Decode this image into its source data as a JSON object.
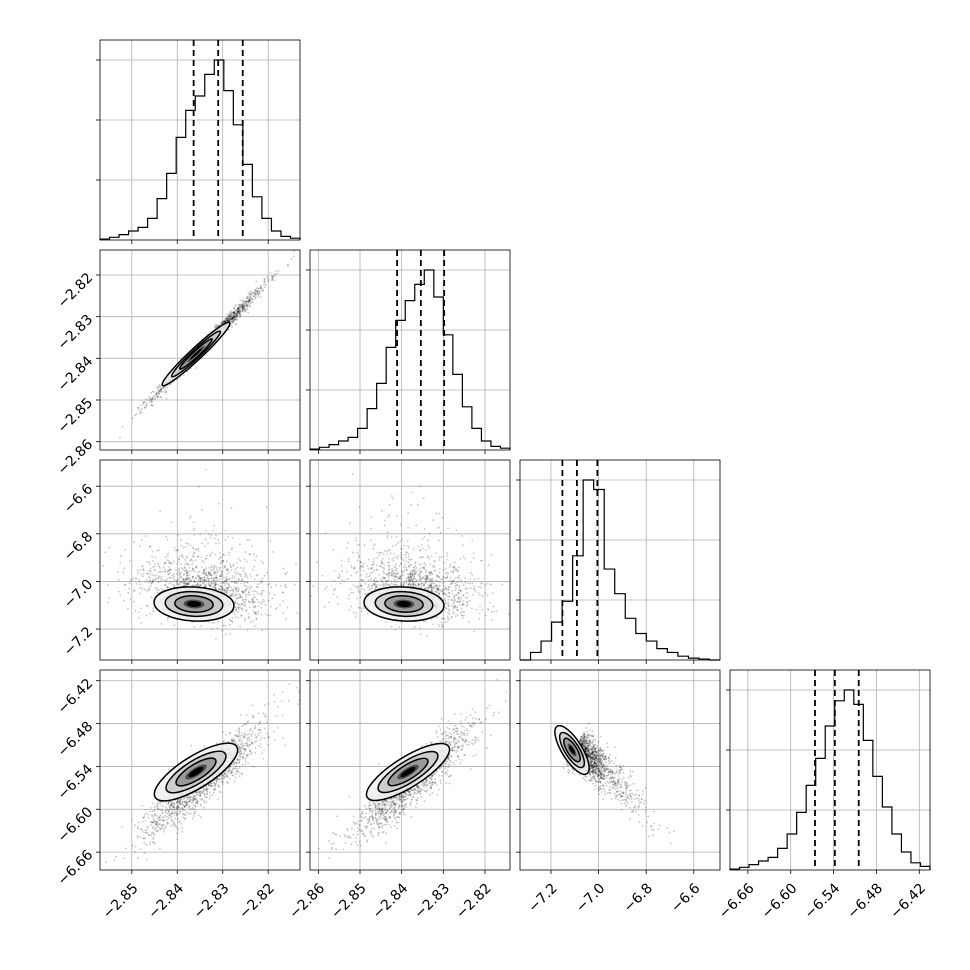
{
  "chart_data": {
    "type": "corner",
    "grid": true,
    "quantiles_marked": "dashed vertical lines on each histogram",
    "parameters": [
      {
        "range": [
          -2.857,
          -2.813
        ],
        "ticks": [
          "-2.85",
          "-2.84",
          "-2.83",
          "-2.82"
        ],
        "tick_values": [
          -2.85,
          -2.84,
          -2.83,
          -2.82
        ],
        "quantile_lines": [
          -2.8364,
          -2.831,
          -2.8256
        ],
        "hist": [
          0.5,
          1.5,
          3,
          5,
          7,
          12,
          23,
          37,
          57,
          72,
          80,
          92,
          100,
          83,
          64,
          42,
          24,
          12,
          5,
          2,
          1
        ]
      },
      {
        "range": [
          -2.862,
          -2.814
        ],
        "ticks": [
          "-2.86",
          "-2.85",
          "-2.84",
          "-2.83",
          "-2.82"
        ],
        "tick_values": [
          -2.86,
          -2.85,
          -2.84,
          -2.83,
          -2.82
        ],
        "quantile_lines": [
          -2.8411,
          -2.8354,
          -2.8298
        ],
        "hist": [
          0.5,
          1.5,
          3,
          5,
          7,
          12,
          23,
          37,
          57,
          72,
          83,
          92,
          100,
          85,
          64,
          42,
          24,
          12,
          5,
          2,
          1
        ]
      },
      {
        "range": [
          -7.33,
          -6.49
        ],
        "ticks": [
          "-7.2",
          "-7.0",
          "-6.8",
          "-6.6"
        ],
        "tick_values": [
          -7.2,
          -7.0,
          -6.8,
          -6.6
        ],
        "quantile_lines": [
          -7.152,
          -7.091,
          -7.005
        ],
        "hist": [
          0,
          4,
          10,
          20,
          31,
          55,
          95,
          90,
          48,
          35,
          22,
          14,
          10,
          6,
          4,
          2,
          1,
          0.5,
          0
        ]
      },
      {
        "range": [
          -6.685,
          -6.405
        ],
        "ticks": [
          "-6.66",
          "-6.60",
          "-6.54",
          "-6.48",
          "-6.42"
        ],
        "tick_values": [
          -6.66,
          -6.6,
          -6.54,
          -6.48,
          -6.42
        ],
        "quantile_lines": [
          -6.566,
          -6.5382,
          -6.5048
        ],
        "hist": [
          0.5,
          1.5,
          3,
          5,
          7,
          12,
          20,
          32,
          47,
          62,
          80,
          94,
          100,
          92,
          72,
          52,
          35,
          20,
          10,
          4,
          2
        ]
      }
    ],
    "pair_panels": [
      {
        "x": 0,
        "y": 1,
        "relation": "strong positive correlation"
      },
      {
        "x": 0,
        "y": 2,
        "relation": "weak, skewed"
      },
      {
        "x": 1,
        "y": 2,
        "relation": "weak, skewed"
      },
      {
        "x": 0,
        "y": 3,
        "relation": "positive correlation"
      },
      {
        "x": 1,
        "y": 3,
        "relation": "positive correlation"
      },
      {
        "x": 2,
        "y": 3,
        "relation": "negative correlation"
      }
    ]
  }
}
